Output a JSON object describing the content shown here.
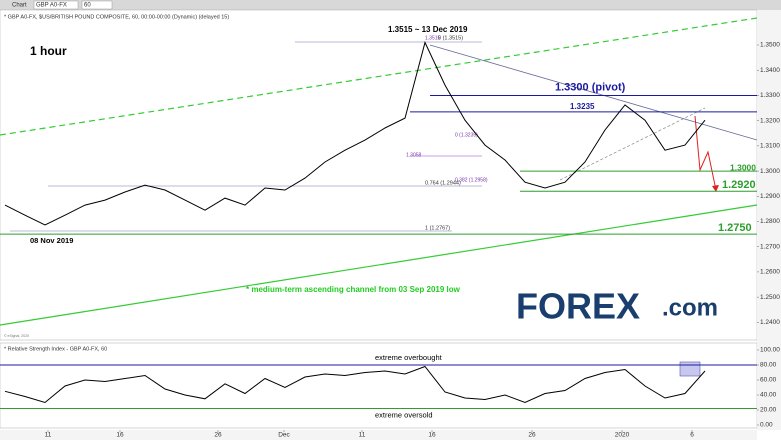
{
  "toolbar": {
    "title": "Chart",
    "symbol": "GBP A0-FX",
    "interval": "60"
  },
  "header": "* GBP A0-FX, $US/BRITISH POUND COMPOSITE, 60, 00:00-00:00 (Dynamic) (delayed 15)",
  "timeframe": "1 hour",
  "notes": {
    "peak": "1.3515 ~ 13 Dec 2019",
    "low": "08 Nov 2019",
    "channel": "* medium-term ascending channel from 03 Sep 2019 low",
    "source": "© eSignal, 2020"
  },
  "fib_labels": [
    "1.3515",
    "0 (1.3515)",
    "1.3058",
    "0 (1.3235)",
    "0.764 (1.2944)",
    "0.382 (1.2958)",
    "1 (1.2767)"
  ],
  "logo": {
    "brand": "FOREX",
    "suffix": ".com"
  },
  "chart_data": [
    {
      "type": "line",
      "x": [
        0,
        1,
        2,
        3,
        4,
        5,
        6,
        7,
        8,
        9,
        10,
        11,
        12,
        13,
        14,
        15,
        16,
        17,
        18,
        19,
        20,
        21,
        22,
        23,
        24,
        25,
        26,
        27,
        28,
        29,
        30,
        31,
        32,
        33,
        34,
        35
      ],
      "series": [
        {
          "name": "GBP A0-FX",
          "color": "#000000",
          "values": [
            1.2865,
            1.2825,
            1.2786,
            1.2825,
            1.2865,
            1.2885,
            1.2917,
            1.2944,
            1.2925,
            1.2885,
            1.2845,
            1.2893,
            1.2865,
            1.2933,
            1.2925,
            1.2972,
            1.3036,
            1.3083,
            1.3123,
            1.3171,
            1.321,
            1.351,
            1.3341,
            1.3202,
            1.3103,
            1.3044,
            1.2956,
            1.2933,
            1.2956,
            1.3036,
            1.3163,
            1.3262,
            1.3202,
            1.3083,
            1.3103,
            1.3202
          ]
        }
      ],
      "xlim": [
        -0.25,
        37.6
      ],
      "xticks": [
        {
          "value": 2.15,
          "label": "11"
        },
        {
          "value": 5.75,
          "label": "16"
        },
        {
          "value": 10.65,
          "label": "26"
        },
        {
          "value": 13.95,
          "label": "Dec"
        },
        {
          "value": 17.85,
          "label": "11"
        },
        {
          "value": 21.35,
          "label": "16"
        },
        {
          "value": 26.35,
          "label": "26"
        },
        {
          "value": 30.85,
          "label": "2020"
        },
        {
          "value": 34.35,
          "label": "6"
        }
      ],
      "ylim": [
        1.233,
        1.3631
      ],
      "yticks": [
        {
          "value": 1.24,
          "label": "1.2400"
        },
        {
          "value": 1.25,
          "label": "1.2500"
        },
        {
          "value": 1.26,
          "label": "1.2600"
        },
        {
          "value": 1.27,
          "label": "1.2700"
        },
        {
          "value": 1.28,
          "label": "1.2800"
        },
        {
          "value": 1.29,
          "label": "1.2900"
        },
        {
          "value": 1.3,
          "label": "1.3000"
        },
        {
          "value": 1.31,
          "label": "1.3100"
        },
        {
          "value": 1.32,
          "label": "1.3200"
        },
        {
          "value": 1.33,
          "label": "1.3300"
        },
        {
          "value": 1.34,
          "label": "1.3400"
        },
        {
          "value": 1.35,
          "label": "1.3500"
        }
      ],
      "levels": [
        {
          "value": 1.33,
          "label": "1.3300 (pivot)",
          "color": "#1a1aa0"
        },
        {
          "value": 1.3235,
          "label": "1.3235",
          "color": "#1a1aa0"
        },
        {
          "value": 1.3,
          "label": "1.3000",
          "color": "#2e9e2e"
        },
        {
          "value": 1.292,
          "label": "1.2920",
          "color": "#2e9e2e"
        },
        {
          "value": 1.275,
          "label": "1.2750",
          "color": "#2e9e2e"
        }
      ]
    },
    {
      "type": "line",
      "title": "* Relative Strength Index - GBP A0-FX, 60",
      "x": [
        0,
        1,
        2,
        3,
        4,
        5,
        6,
        7,
        8,
        9,
        10,
        11,
        12,
        13,
        14,
        15,
        16,
        17,
        18,
        19,
        20,
        21,
        22,
        23,
        24,
        25,
        26,
        27,
        28,
        29,
        30,
        31,
        32,
        33,
        34,
        35
      ],
      "series": [
        {
          "name": "RSI",
          "color": "#000000",
          "values": [
            45,
            38,
            30,
            52,
            60,
            58,
            62,
            66,
            48,
            40,
            35,
            55,
            42,
            62,
            50,
            64,
            68,
            66,
            70,
            72,
            68,
            78,
            44,
            36,
            34,
            40,
            30,
            42,
            46,
            62,
            70,
            74,
            52,
            36,
            42,
            72
          ]
        }
      ],
      "xlim": [
        -0.25,
        37.6
      ],
      "ylim": [
        0,
        100
      ],
      "yticks": [
        {
          "value": 0,
          "label": "0.00"
        },
        {
          "value": 20,
          "label": "20.00"
        },
        {
          "value": 40,
          "label": "40.00"
        },
        {
          "value": 60,
          "label": "60.00"
        },
        {
          "value": 80,
          "label": "80.00"
        },
        {
          "value": 100,
          "label": "100.00"
        }
      ],
      "levels": [
        {
          "value": 80,
          "label": "extreme overbought",
          "color": "#1a1aa0"
        },
        {
          "value": 22,
          "label": "extreme oversold",
          "color": "#2e9e2e"
        }
      ]
    }
  ]
}
